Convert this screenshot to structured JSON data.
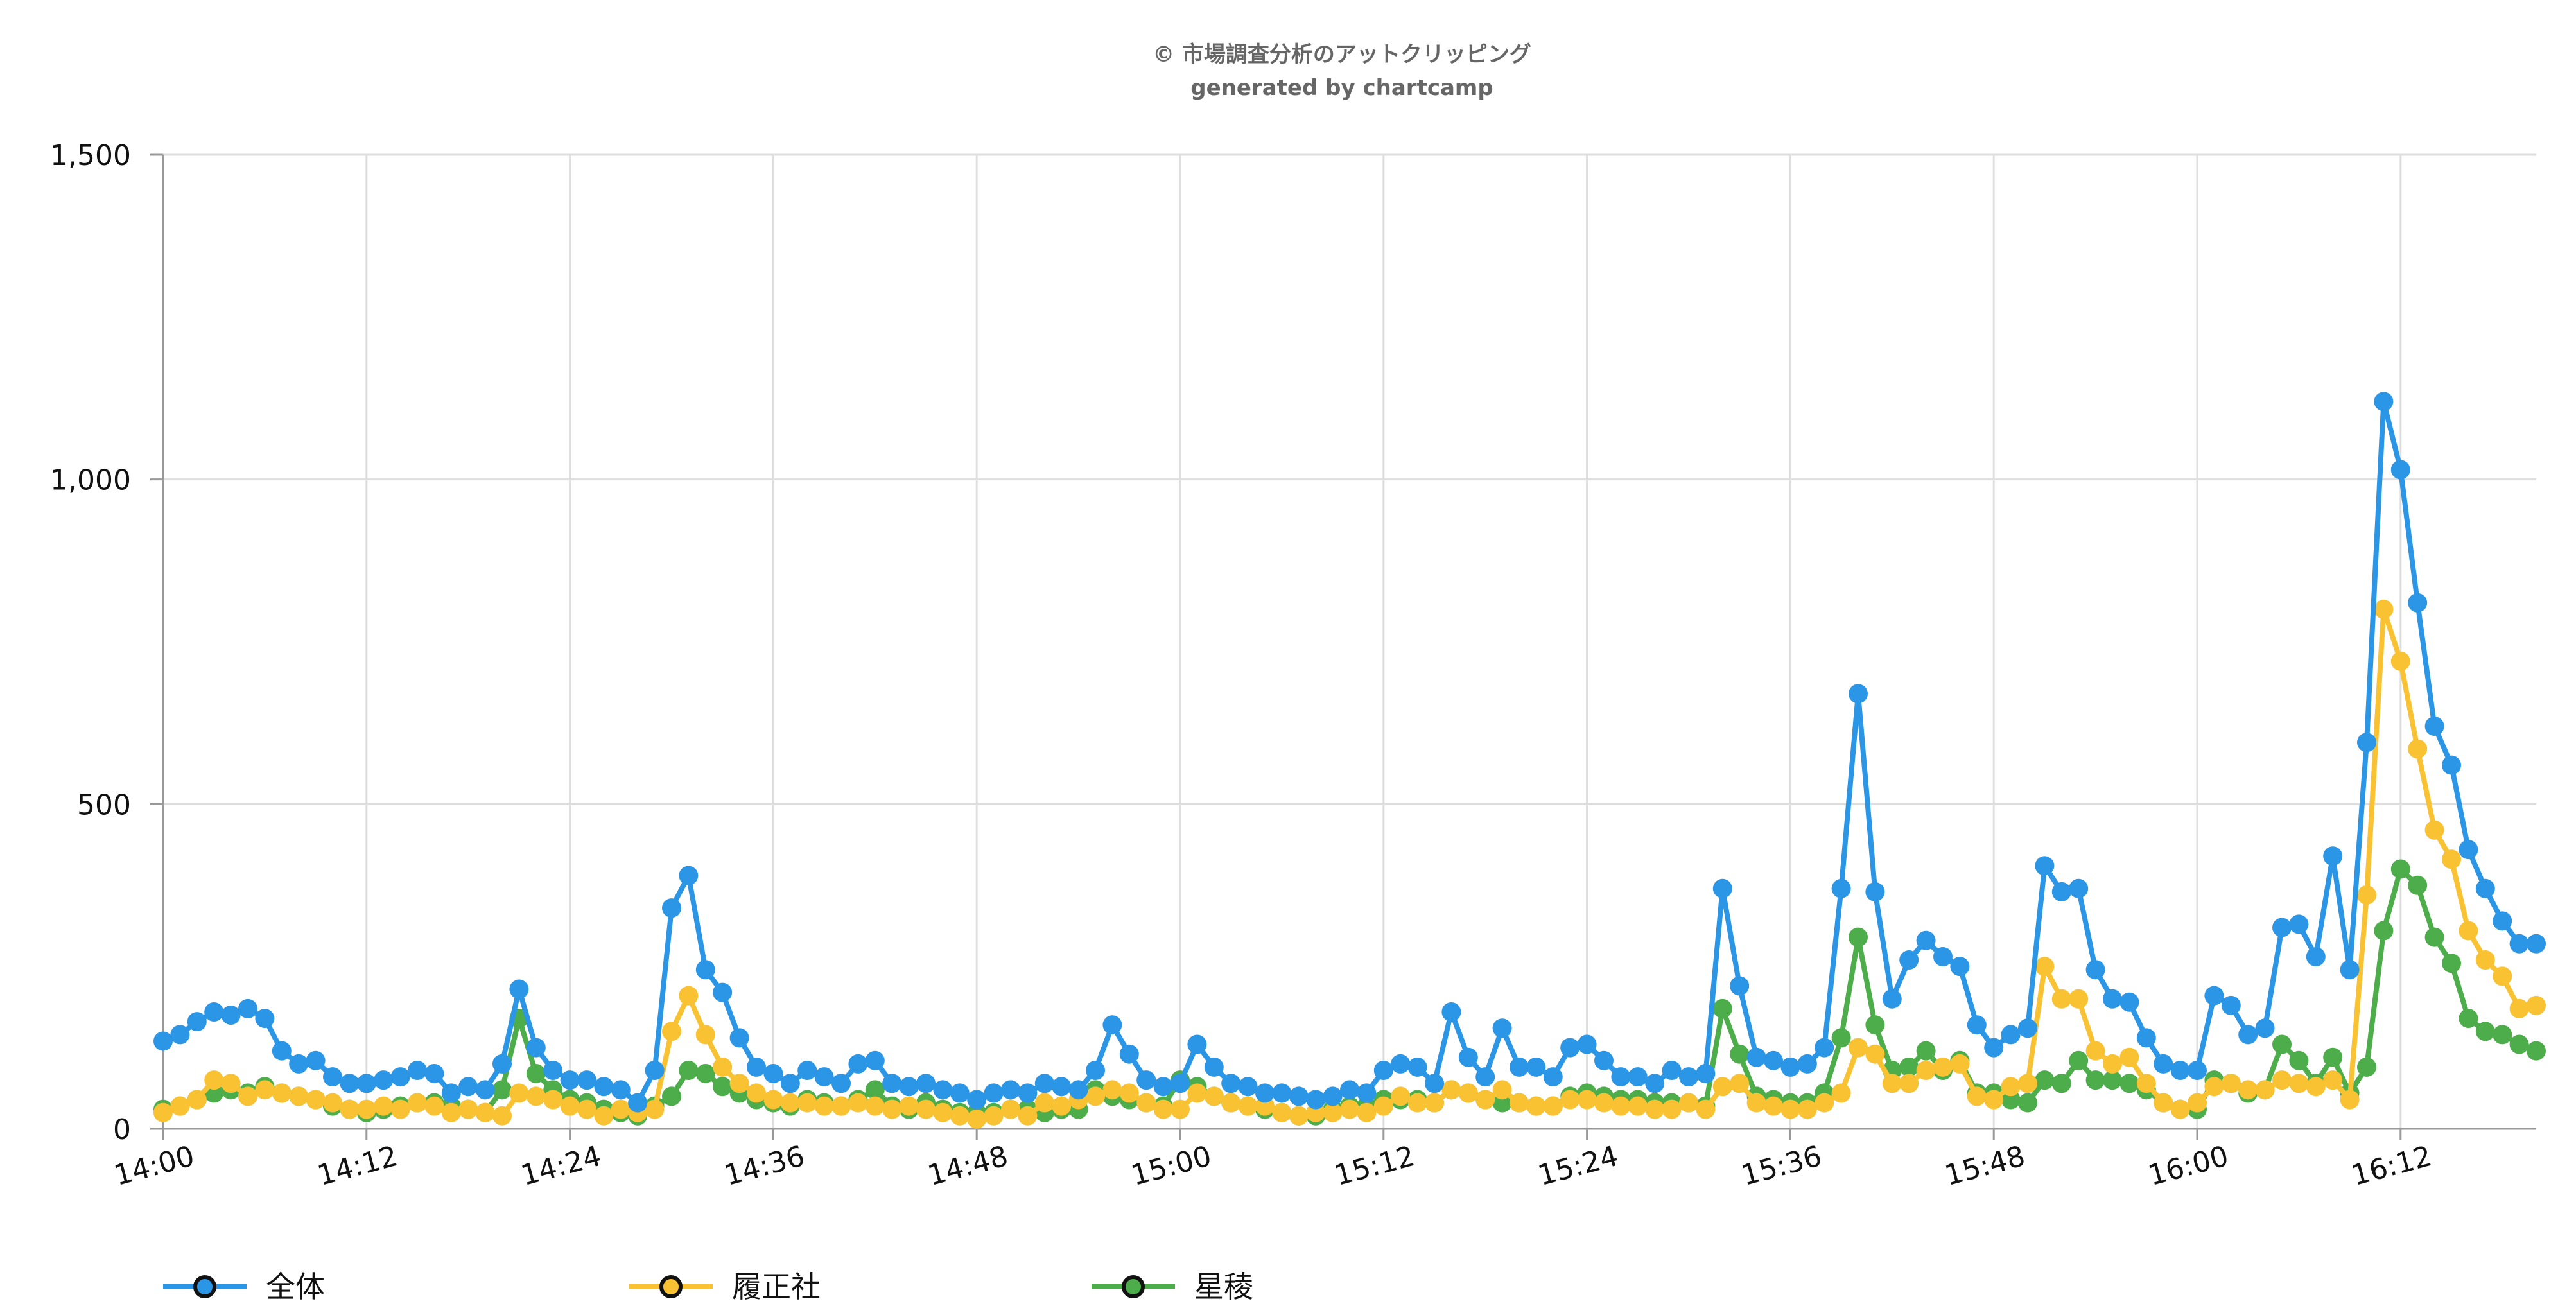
{
  "chart_data": {
    "type": "line",
    "title": "© 市場調査分析のアットクリッピング",
    "subtitle": "generated by chartcamp",
    "xlabel": "",
    "ylabel": "",
    "ylim": [
      0,
      1500
    ],
    "y_ticks": [
      "0",
      "500",
      "1,000",
      "1,500"
    ],
    "y_tick_values": [
      0,
      500,
      1000,
      1500
    ],
    "x_ticks": [
      "14:00",
      "14:12",
      "14:24",
      "14:36",
      "14:48",
      "15:00",
      "15:12",
      "15:24",
      "15:36",
      "15:48",
      "16:00",
      "16:12"
    ],
    "grid": true,
    "legend_position": "bottom-left",
    "series": [
      {
        "name": "全体",
        "color": "#2b95e6",
        "values": [
          135,
          145,
          165,
          180,
          175,
          185,
          170,
          120,
          100,
          105,
          80,
          70,
          70,
          75,
          80,
          90,
          85,
          55,
          65,
          60,
          100,
          215,
          125,
          90,
          75,
          75,
          65,
          60,
          40,
          90,
          340,
          390,
          245,
          210,
          140,
          95,
          85,
          70,
          90,
          80,
          70,
          100,
          105,
          70,
          65,
          70,
          60,
          55,
          45,
          55,
          60,
          55,
          70,
          65,
          60,
          90,
          160,
          115,
          75,
          65,
          70,
          130,
          95,
          70,
          65,
          55,
          55,
          50,
          45,
          50,
          60,
          55,
          90,
          100,
          95,
          70,
          180,
          110,
          80,
          155,
          95,
          95,
          80,
          125,
          130,
          105,
          80,
          80,
          70,
          90,
          80,
          85,
          370,
          220,
          110,
          105,
          95,
          100,
          125,
          370,
          670,
          365,
          200,
          260,
          290,
          265,
          250,
          160,
          125,
          145,
          155,
          405,
          365,
          370,
          245,
          200,
          195,
          140,
          100,
          90,
          90,
          205,
          190,
          145,
          155,
          310,
          315,
          265,
          420,
          245,
          595,
          1120,
          1015,
          810,
          620,
          560,
          430,
          370,
          320,
          285,
          285
        ],
        "values_labeled": false
      },
      {
        "name": "履正社",
        "color": "#f8c233",
        "values": [
          25,
          35,
          45,
          75,
          70,
          50,
          60,
          55,
          50,
          45,
          40,
          30,
          30,
          35,
          30,
          40,
          35,
          25,
          30,
          25,
          20,
          55,
          50,
          45,
          35,
          30,
          20,
          30,
          25,
          30,
          150,
          205,
          145,
          95,
          70,
          55,
          45,
          40,
          40,
          35,
          35,
          40,
          35,
          30,
          35,
          30,
          25,
          20,
          15,
          20,
          30,
          20,
          40,
          35,
          45,
          50,
          60,
          55,
          40,
          30,
          30,
          55,
          50,
          40,
          35,
          35,
          25,
          20,
          25,
          25,
          30,
          25,
          35,
          50,
          40,
          40,
          60,
          55,
          45,
          60,
          40,
          35,
          35,
          45,
          45,
          40,
          35,
          35,
          30,
          30,
          40,
          30,
          65,
          70,
          40,
          35,
          30,
          30,
          40,
          55,
          125,
          115,
          70,
          70,
          90,
          95,
          100,
          50,
          45,
          65,
          70,
          250,
          200,
          200,
          120,
          100,
          110,
          70,
          40,
          30,
          40,
          65,
          70,
          60,
          60,
          75,
          70,
          65,
          75,
          45,
          360,
          800,
          720,
          585,
          460,
          415,
          305,
          260,
          235,
          185,
          190
        ],
        "values_labeled": false
      },
      {
        "name": "星稜",
        "color": "#4cad4a",
        "values": [
          30,
          35,
          45,
          55,
          60,
          55,
          65,
          55,
          50,
          45,
          35,
          30,
          25,
          30,
          35,
          40,
          40,
          35,
          30,
          25,
          60,
          170,
          85,
          60,
          45,
          40,
          30,
          25,
          20,
          35,
          50,
          90,
          85,
          65,
          55,
          45,
          40,
          35,
          45,
          40,
          35,
          45,
          60,
          35,
          30,
          40,
          30,
          25,
          25,
          25,
          30,
          30,
          25,
          30,
          30,
          60,
          50,
          45,
          40,
          35,
          75,
          65,
          50,
          40,
          35,
          30,
          25,
          20,
          20,
          30,
          35,
          35,
          45,
          45,
          45,
          40,
          60,
          55,
          45,
          40,
          40,
          35,
          35,
          50,
          55,
          50,
          45,
          45,
          40,
          40,
          40,
          35,
          185,
          115,
          50,
          45,
          40,
          40,
          55,
          140,
          295,
          160,
          90,
          95,
          120,
          90,
          105,
          55,
          55,
          45,
          40,
          75,
          70,
          105,
          75,
          75,
          70,
          60,
          40,
          30,
          30,
          75,
          70,
          55,
          60,
          130,
          105,
          70,
          110,
          55,
          95,
          305,
          400,
          375,
          295,
          255,
          170,
          150,
          145,
          130,
          120
        ],
        "values_labeled": false
      }
    ]
  }
}
